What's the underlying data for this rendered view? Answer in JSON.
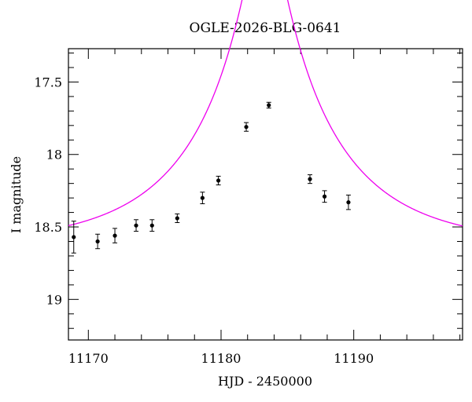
{
  "chart_data": {
    "type": "scatter",
    "title": "OGLE-2026-BLG-0641",
    "xlabel": "HJD - 2450000",
    "ylabel": "I magnitude",
    "xlim": [
      11168.5,
      11198.2
    ],
    "ylim": [
      19.28,
      17.27
    ],
    "y_inverted": true,
    "x_ticks_major": [
      11170,
      11180,
      11190
    ],
    "x_ticks_minor_step": 2,
    "y_ticks_major": [
      17.5,
      18,
      18.5,
      19
    ],
    "y_ticks_minor_step": 0.1,
    "grid": false,
    "tick_labels_x": [
      "11170",
      "11180",
      "11190"
    ],
    "tick_labels_y": [
      "17.5",
      "18",
      "18.5",
      "19"
    ],
    "series": [
      {
        "style": "points_with_errorbars",
        "color": "#000000",
        "points": [
          {
            "x": 11168.9,
            "y": 18.57,
            "err": 0.11
          },
          {
            "x": 11170.7,
            "y": 18.6,
            "err": 0.05
          },
          {
            "x": 11172.0,
            "y": 18.56,
            "err": 0.05
          },
          {
            "x": 11173.6,
            "y": 18.49,
            "err": 0.04
          },
          {
            "x": 11174.8,
            "y": 18.49,
            "err": 0.04
          },
          {
            "x": 11176.7,
            "y": 18.44,
            "err": 0.03
          },
          {
            "x": 11178.6,
            "y": 18.3,
            "err": 0.04
          },
          {
            "x": 11179.8,
            "y": 18.18,
            "err": 0.03
          },
          {
            "x": 11181.9,
            "y": 17.81,
            "err": 0.03
          },
          {
            "x": 11183.6,
            "y": 17.66,
            "err": 0.02
          },
          {
            "x": 11186.7,
            "y": 18.17,
            "err": 0.03
          },
          {
            "x": 11187.8,
            "y": 18.29,
            "err": 0.04
          },
          {
            "x": 11189.6,
            "y": 18.33,
            "err": 0.05
          }
        ]
      },
      {
        "style": "line",
        "color": "#ee00ee",
        "model": {
          "kind": "paczynski",
          "t0": 11183.3,
          "tE": 9.9,
          "u0": 0.125,
          "I_base": 18.627
        }
      }
    ]
  }
}
